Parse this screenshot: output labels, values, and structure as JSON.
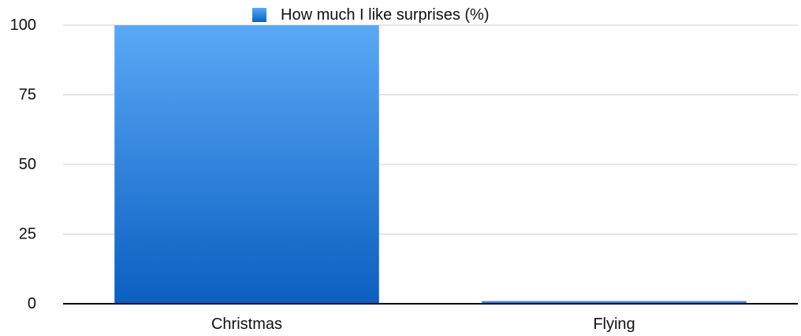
{
  "chart_data": {
    "type": "bar",
    "categories": [
      "Christmas",
      "Flying"
    ],
    "series": [
      {
        "name": "How much I like surprises (%)",
        "values": [
          100,
          1
        ],
        "color": "#2b86e0"
      }
    ],
    "ylim": [
      0,
      100
    ],
    "yticks": [
      0,
      25,
      50,
      75,
      100
    ],
    "grid": true,
    "legend": "top-center",
    "colors": {
      "bar_top": "#5aa9f7",
      "bar_bottom": "#0a5fc0",
      "grid": "#cfcfcf",
      "axis": "#000000"
    }
  }
}
